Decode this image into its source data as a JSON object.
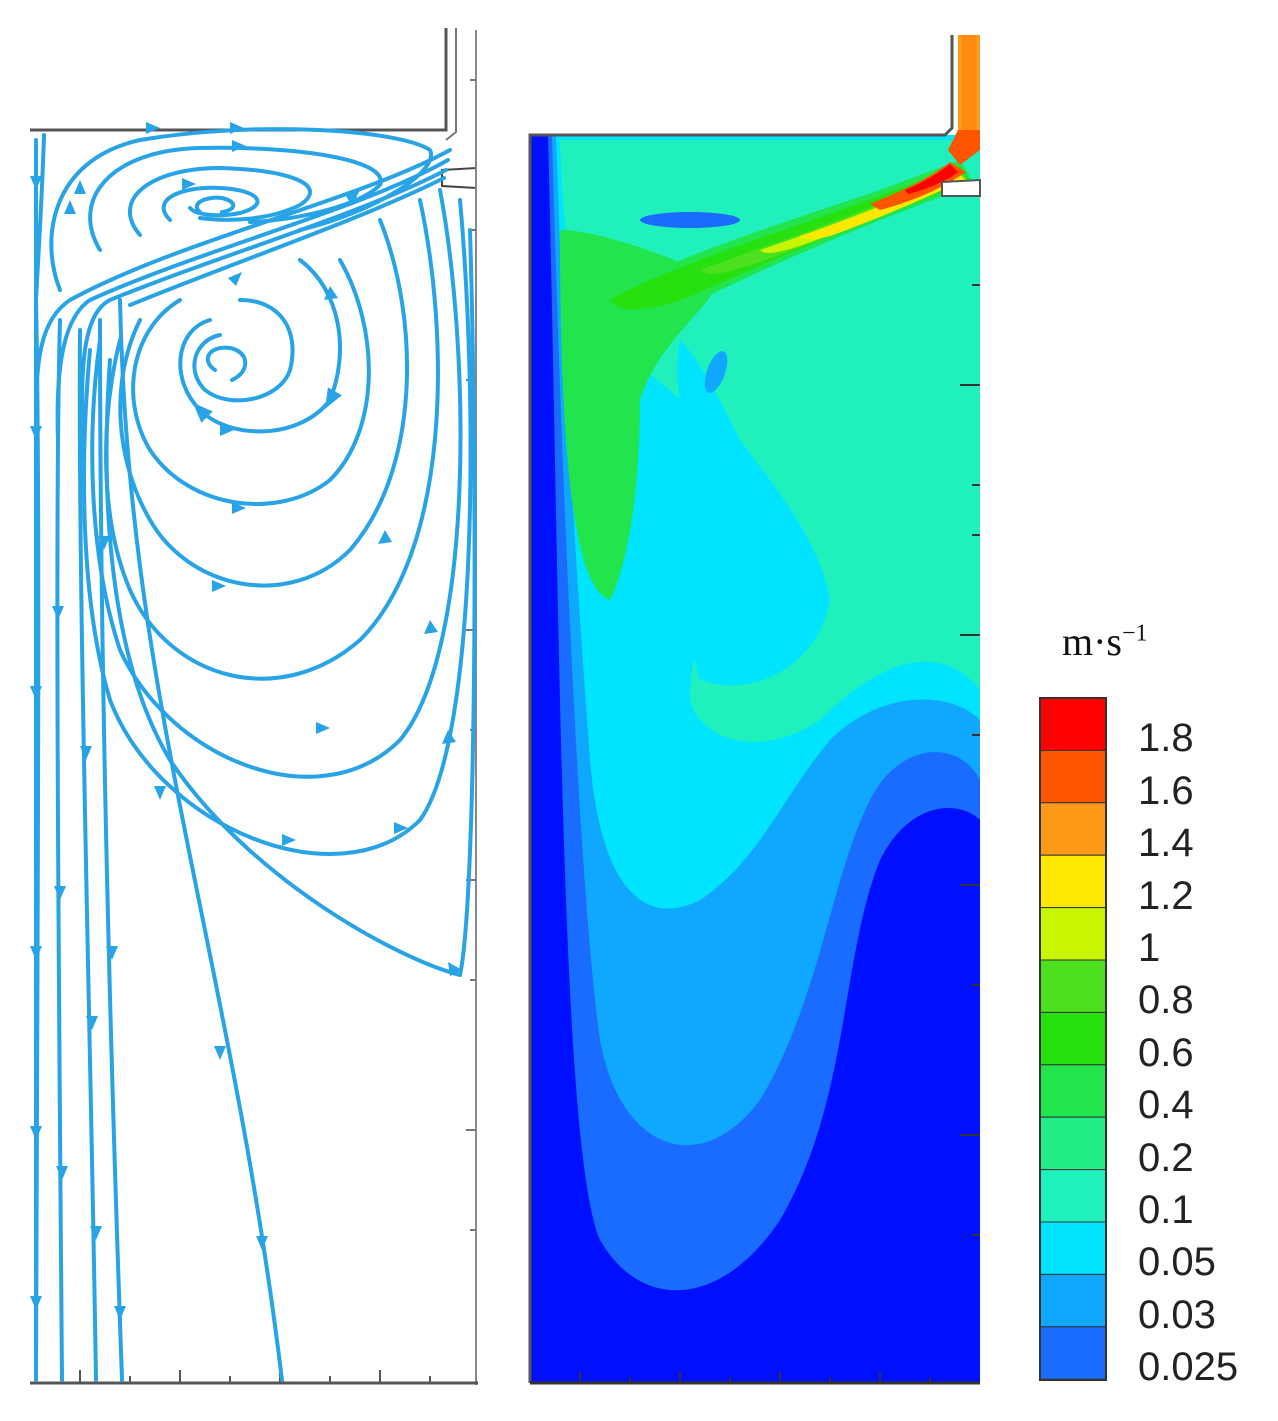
{
  "legend": {
    "unit_base": "m·s",
    "unit_exp": "−1",
    "levels": [
      {
        "label": "1.8",
        "color": "#ff0000"
      },
      {
        "label": "1.6",
        "color": "#ff5500"
      },
      {
        "label": "1.4",
        "color": "#ff9a18"
      },
      {
        "label": "1.2",
        "color": "#ffe800"
      },
      {
        "label": "1",
        "color": "#c8f500"
      },
      {
        "label": "0.8",
        "color": "#4ce020"
      },
      {
        "label": "0.6",
        "color": "#26e010"
      },
      {
        "label": "0.4",
        "color": "#22e44c"
      },
      {
        "label": "0.2",
        "color": "#22ee88"
      },
      {
        "label": "0.1",
        "color": "#20f0bc"
      },
      {
        "label": "0.05",
        "color": "#00e4ff"
      },
      {
        "label": "0.03",
        "color": "#10a8ff"
      },
      {
        "label": "0.025",
        "color": "#1a6cff"
      }
    ],
    "bottom_color": "#0010ff"
  },
  "colors": {
    "streamline": "#27a3e6",
    "outline": "#555555"
  }
}
